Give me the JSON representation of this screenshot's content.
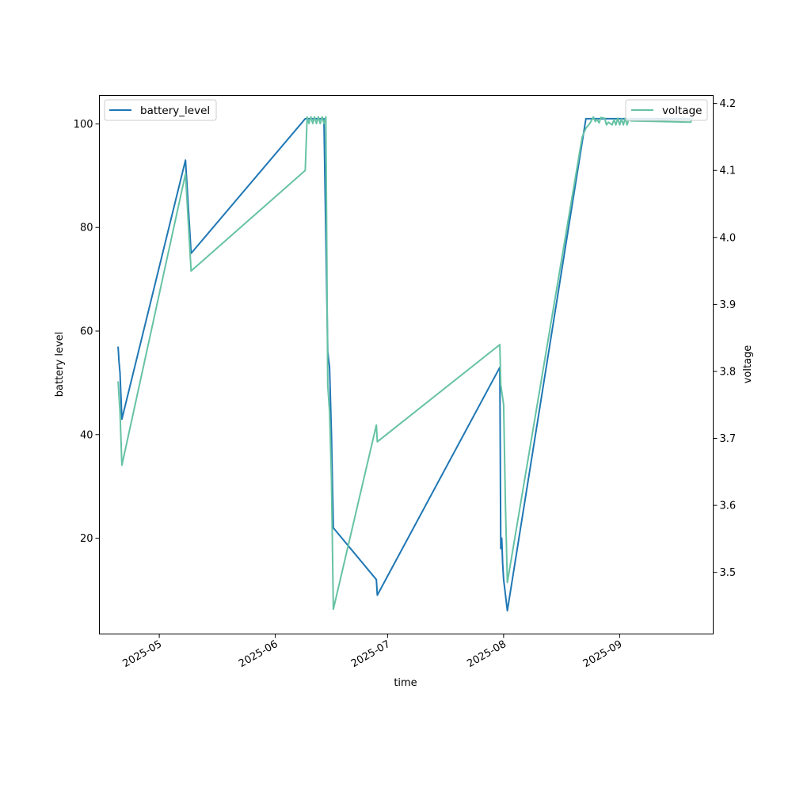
{
  "chart_data": {
    "type": "line",
    "xlabel": "time",
    "ylabel": "battery level",
    "y2label": "voltage",
    "x_range": [
      "2025-04-15",
      "2025-09-26"
    ],
    "ylim": [
      1.5,
      105.5
    ],
    "y2lim": [
      3.408,
      4.212
    ],
    "x_ticks": [
      {
        "label": "2025-05",
        "date": "2025-05-01"
      },
      {
        "label": "2025-06",
        "date": "2025-06-01"
      },
      {
        "label": "2025-07",
        "date": "2025-07-01"
      },
      {
        "label": "2025-08",
        "date": "2025-08-01"
      },
      {
        "label": "2025-09",
        "date": "2025-09-01"
      }
    ],
    "y_ticks": [
      20,
      40,
      60,
      80,
      100
    ],
    "y2_ticks": [
      3.5,
      3.6,
      3.7,
      3.8,
      3.9,
      4.0,
      4.1,
      4.2
    ],
    "grid": false,
    "legend_left": "top-left",
    "legend_right": "top-right",
    "series": [
      {
        "name": "battery_level",
        "axis": "left",
        "color": "#1f77b4",
        "points": [
          [
            "2025-04-20T00:00",
            57
          ],
          [
            "2025-04-20T06:00",
            54
          ],
          [
            "2025-04-20T12:00",
            52
          ],
          [
            "2025-04-21T00:00",
            43
          ],
          [
            "2025-05-08T00:00",
            93
          ],
          [
            "2025-05-09T12:00",
            75
          ],
          [
            "2025-06-09T00:00",
            101
          ],
          [
            "2025-06-14T00:00",
            101
          ],
          [
            "2025-06-15T00:00",
            56
          ],
          [
            "2025-06-15T12:00",
            53
          ],
          [
            "2025-06-16T00:00",
            40
          ],
          [
            "2025-06-16T12:00",
            22
          ],
          [
            "2025-06-28T00:00",
            12
          ],
          [
            "2025-06-28T06:00",
            9
          ],
          [
            "2025-07-31T00:00",
            53
          ],
          [
            "2025-07-31T06:00",
            18
          ],
          [
            "2025-07-31T12:00",
            20
          ],
          [
            "2025-07-31T18:00",
            15
          ],
          [
            "2025-08-01T00:00",
            12
          ],
          [
            "2025-08-02T00:00",
            6
          ],
          [
            "2025-08-23T00:00",
            101
          ],
          [
            "2025-09-20T00:00",
            101
          ]
        ]
      },
      {
        "name": "voltage",
        "axis": "right",
        "color": "#66c2a5",
        "points": [
          [
            "2025-04-20T00:00",
            3.785
          ],
          [
            "2025-04-20T12:00",
            3.74
          ],
          [
            "2025-04-21T00:00",
            3.66
          ],
          [
            "2025-05-08T00:00",
            4.095
          ],
          [
            "2025-05-09T12:00",
            3.95
          ],
          [
            "2025-06-09T00:00",
            4.1
          ],
          [
            "2025-06-09T12:00",
            4.18
          ],
          [
            "2025-06-10T00:00",
            4.17
          ],
          [
            "2025-06-10T12:00",
            4.18
          ],
          [
            "2025-06-11T00:00",
            4.17
          ],
          [
            "2025-06-11T12:00",
            4.18
          ],
          [
            "2025-06-12T00:00",
            4.17
          ],
          [
            "2025-06-12T12:00",
            4.18
          ],
          [
            "2025-06-13T00:00",
            4.17
          ],
          [
            "2025-06-13T12:00",
            4.18
          ],
          [
            "2025-06-14T00:00",
            4.17
          ],
          [
            "2025-06-14T12:00",
            4.18
          ],
          [
            "2025-06-15T00:00",
            3.78
          ],
          [
            "2025-06-15T12:00",
            3.74
          ],
          [
            "2025-06-16T00:00",
            3.64
          ],
          [
            "2025-06-16T12:00",
            3.445
          ],
          [
            "2025-06-28T00:00",
            3.72
          ],
          [
            "2025-06-28T06:00",
            3.695
          ],
          [
            "2025-07-31T00:00",
            3.84
          ],
          [
            "2025-07-31T06:00",
            3.78
          ],
          [
            "2025-08-01T00:00",
            3.75
          ],
          [
            "2025-08-01T12:00",
            3.6
          ],
          [
            "2025-08-02T00:00",
            3.485
          ],
          [
            "2025-08-22T00:00",
            4.15
          ],
          [
            "2025-08-23T00:00",
            4.163
          ],
          [
            "2025-08-24T00:00",
            4.17
          ],
          [
            "2025-08-25T00:00",
            4.18
          ],
          [
            "2025-08-25T12:00",
            4.173
          ],
          [
            "2025-08-26T00:00",
            4.176
          ],
          [
            "2025-08-26T12:00",
            4.171
          ],
          [
            "2025-08-27T00:00",
            4.179
          ],
          [
            "2025-08-28T00:00",
            4.178
          ],
          [
            "2025-08-28T12:00",
            4.168
          ],
          [
            "2025-08-29T00:00",
            4.172
          ],
          [
            "2025-08-30T00:00",
            4.168
          ],
          [
            "2025-08-30T12:00",
            4.176
          ],
          [
            "2025-08-31T00:00",
            4.168
          ],
          [
            "2025-08-31T12:00",
            4.178
          ],
          [
            "2025-09-01T00:00",
            4.168
          ],
          [
            "2025-09-01T12:00",
            4.177
          ],
          [
            "2025-09-02T00:00",
            4.168
          ],
          [
            "2025-09-02T12:00",
            4.178
          ],
          [
            "2025-09-03T00:00",
            4.168
          ],
          [
            "2025-09-03T12:00",
            4.178
          ],
          [
            "2025-09-04T00:00",
            4.174
          ],
          [
            "2025-09-20T00:00",
            4.172
          ],
          [
            "2025-09-20T12:00",
            4.18
          ]
        ]
      }
    ]
  }
}
